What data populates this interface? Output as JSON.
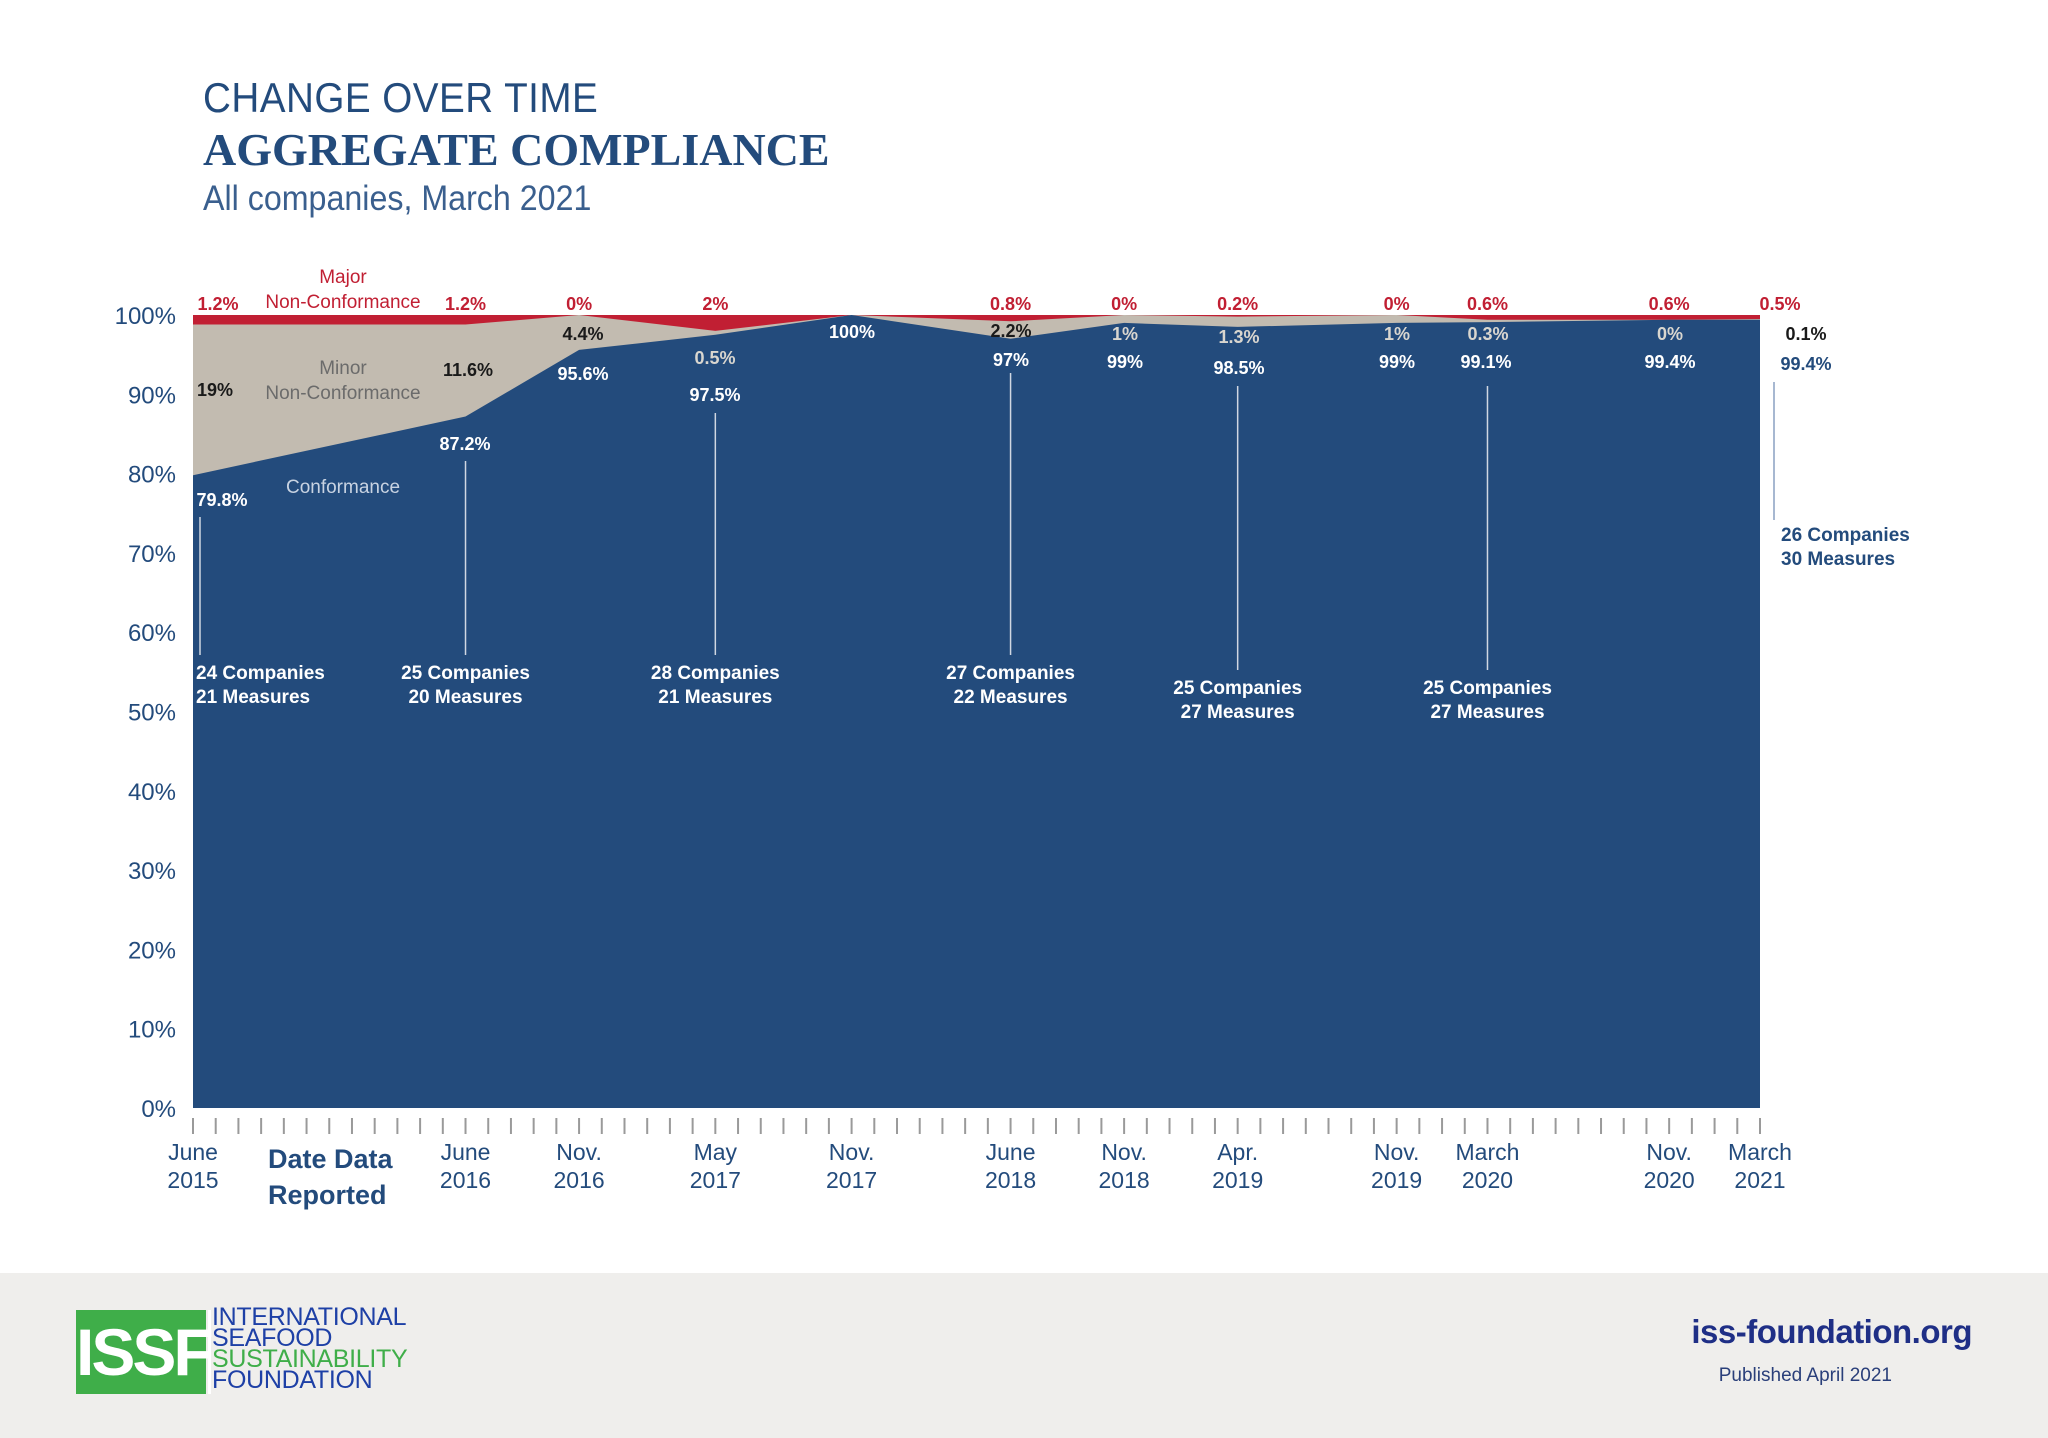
{
  "header": {
    "kicker": "CHANGE OVER TIME",
    "title": "AGGREGATE COMPLIANCE",
    "subtitle": "All companies, March 2021"
  },
  "chart_data": {
    "type": "area",
    "stacked": true,
    "x_axis_title": "Date Data Reported",
    "x_categories": [
      "June 2015",
      "June 2016",
      "Nov. 2016",
      "May 2017",
      "Nov. 2017",
      "June 2018",
      "Nov. 2018",
      "Apr. 2019",
      "Nov. 2019",
      "March 2020",
      "Nov. 2020",
      "March 2021"
    ],
    "x_category_lines": [
      [
        "June",
        "2015"
      ],
      [
        "June",
        "2016"
      ],
      [
        "Nov.",
        "2016"
      ],
      [
        "May",
        "2017"
      ],
      [
        "Nov.",
        "2017"
      ],
      [
        "June",
        "2018"
      ],
      [
        "Nov.",
        "2018"
      ],
      [
        "Apr.",
        "2019"
      ],
      [
        "Nov.",
        "2019"
      ],
      [
        "March",
        "2020"
      ],
      [
        "Nov.",
        "2020"
      ],
      [
        "March",
        "2021"
      ]
    ],
    "x_month_index": [
      0,
      12,
      17,
      23,
      29,
      36,
      41,
      46,
      53,
      57,
      65,
      69
    ],
    "ylim": [
      0,
      100
    ],
    "y_ticks": [
      "0%",
      "10%",
      "20%",
      "30%",
      "40%",
      "50%",
      "60%",
      "70%",
      "80%",
      "90%",
      "100%"
    ],
    "series": [
      {
        "name": "Conformance",
        "color": "#234b7c",
        "values": [
          79.8,
          87.2,
          95.6,
          97.5,
          100,
          97,
          99,
          98.5,
          99,
          99.1,
          99.4,
          99.4
        ],
        "labels": [
          "79.8%",
          "87.2%",
          "95.6%",
          "97.5%",
          "100%",
          "97%",
          "99%",
          "98.5%",
          "99%",
          "99.1%",
          "99.4%",
          "99.4%"
        ]
      },
      {
        "name": "Minor Non-Conformance",
        "name_lines": [
          "Minor",
          "Non-Conformance"
        ],
        "color": "#c2bbb0",
        "values": [
          19,
          11.6,
          4.4,
          0.5,
          0,
          2.2,
          1,
          1.3,
          1,
          0.3,
          0,
          0.1
        ],
        "labels": [
          "19%",
          "11.6%",
          "4.4%",
          "0.5%",
          "",
          "2.2%",
          "1%",
          "1.3%",
          "1%",
          "0.3%",
          "0%",
          "0.1%"
        ]
      },
      {
        "name": "Major Non-Conformance",
        "name_lines": [
          "Major",
          "Non-Conformance"
        ],
        "color": "#c11f33",
        "values": [
          1.2,
          1.2,
          0,
          2,
          0,
          0.8,
          0,
          0.2,
          0,
          0.6,
          0.6,
          0.5
        ],
        "labels": [
          "1.2%",
          "1.2%",
          "0%",
          "2%",
          "",
          "0.8%",
          "0%",
          "0.2%",
          "0%",
          "0.6%",
          "0.6%",
          "0.5%"
        ]
      }
    ],
    "annotations": [
      {
        "x": "June 2015",
        "lines": [
          "24 Companies",
          "21 Measures"
        ]
      },
      {
        "x": "June 2016",
        "lines": [
          "25 Companies",
          "20 Measures"
        ]
      },
      {
        "x": "May 2017",
        "lines": [
          "28 Companies",
          "21 Measures"
        ]
      },
      {
        "x": "June 2018",
        "lines": [
          "27 Companies",
          "22 Measures"
        ]
      },
      {
        "x": "Apr. 2019",
        "lines": [
          "25 Companies",
          "27 Measures"
        ]
      },
      {
        "x": "March 2020",
        "lines": [
          "25 Companies",
          "27 Measures"
        ]
      },
      {
        "x": "March 2021",
        "lines": [
          "26 Companies",
          "30 Measures"
        ]
      }
    ],
    "colors": {
      "axis": "#234b7c",
      "tick": "#9a9a9a",
      "leader": "#9a9a9a"
    }
  },
  "footer": {
    "logo_mark": "ISSF",
    "logo_words": [
      "INTERNATIONAL",
      "SEAFOOD",
      "SUSTAINABILITY",
      "FOUNDATION"
    ],
    "website": "iss-foundation.org",
    "published": "Published April 2021",
    "colors": {
      "logo_green": "#3fae49",
      "logo_blue": "#1e40a6",
      "footer_bg": "#efeeec"
    }
  }
}
